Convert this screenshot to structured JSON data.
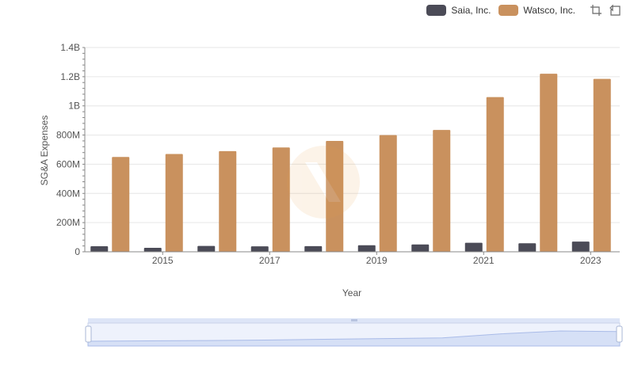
{
  "chart_data": {
    "type": "bar",
    "title": "",
    "xlabel": "Year",
    "ylabel": "SG&A Expenses",
    "ylim": [
      0,
      1400000000
    ],
    "y_ticks": [
      {
        "value": 0,
        "label": "0"
      },
      {
        "value": 200000000,
        "label": "200M"
      },
      {
        "value": 400000000,
        "label": "400M"
      },
      {
        "value": 600000000,
        "label": "600M"
      },
      {
        "value": 800000000,
        "label": "800M"
      },
      {
        "value": 1000000000,
        "label": "1B"
      },
      {
        "value": 1200000000,
        "label": "1.2B"
      },
      {
        "value": 1400000000,
        "label": "1.4B"
      }
    ],
    "categories": [
      "2014",
      "2015",
      "2016",
      "2017",
      "2018",
      "2019",
      "2020",
      "2021",
      "2022",
      "2023"
    ],
    "x_tick_labels": [
      "2015",
      "2017",
      "2019",
      "2021",
      "2023"
    ],
    "series": [
      {
        "name": "Saia, Inc.",
        "color": "#4b4b57",
        "values": [
          38000000,
          27000000,
          40000000,
          37000000,
          39000000,
          45000000,
          50000000,
          62000000,
          58000000,
          70000000
        ]
      },
      {
        "name": "Watsco, Inc.",
        "color": "#c9915e",
        "values": [
          650000000,
          670000000,
          690000000,
          715000000,
          760000000,
          800000000,
          835000000,
          1060000000,
          1220000000,
          1185000000
        ]
      }
    ],
    "legend_position": "top-right",
    "grid": true
  },
  "toolbar": {
    "icons": [
      "zoom-icon",
      "restore-icon"
    ]
  }
}
